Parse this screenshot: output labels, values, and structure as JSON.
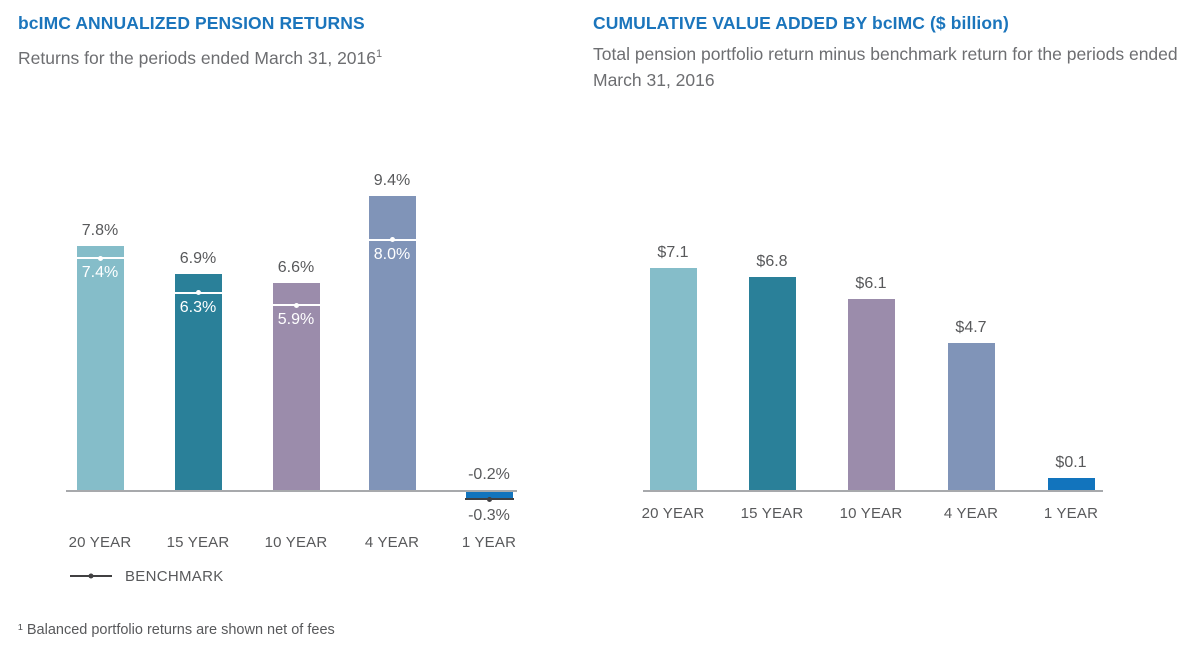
{
  "header_left": {
    "title": "bcIMC ANNUALIZED PENSION RETURNS",
    "subtitle": "Returns for the periods ended March 31, 2016",
    "footnote_ref": "1"
  },
  "header_right": {
    "title": "CUMULATIVE VALUE ADDED BY bcIMC ($ billion)",
    "subtitle": "Total pension portfolio return minus benchmark return for the periods ended March 31, 2016"
  },
  "legend": {
    "benchmark_label": "BENCHMARK"
  },
  "footnote": "¹ Balanced portfolio returns are shown net of fees",
  "colors": {
    "title_blue": "#1b75bc",
    "subtitle_gray": "#6d6e71",
    "label_gray": "#58595b",
    "axis_gray": "#a7a9ac",
    "benchmark_dark": "#414042",
    "benchmark_marker_on_bar": "#ffffff",
    "bar_palette": [
      "#85bdc9",
      "#2a8099",
      "#9b8cab",
      "#8094b8",
      "#1274bd"
    ]
  },
  "chart_data": [
    {
      "type": "bar",
      "title": "bcIMC ANNUALIZED PENSION RETURNS",
      "subtitle": "Returns for the periods ended March 31, 2016¹",
      "categories": [
        "20 YEAR",
        "15 YEAR",
        "10 YEAR",
        "4 YEAR",
        "1 YEAR"
      ],
      "series": [
        {
          "name": "Annualized pension return",
          "values": [
            7.8,
            6.9,
            6.6,
            9.4,
            -0.2
          ],
          "labels": [
            "7.8%",
            "6.9%",
            "6.6%",
            "9.4%",
            "-0.2%"
          ]
        },
        {
          "name": "BENCHMARK",
          "values": [
            7.4,
            6.3,
            5.9,
            8.0,
            -0.3
          ],
          "labels": [
            "7.4%",
            "6.3%",
            "5.9%",
            "8.0%",
            "-0.3%"
          ]
        }
      ],
      "bar_colors": [
        "#85bdc9",
        "#2a8099",
        "#9b8cab",
        "#8094b8",
        "#1274bd"
      ],
      "xlabel": "",
      "ylabel": "",
      "ylim": [
        -0.5,
        10
      ],
      "grid": false,
      "axis_labels_shown": false,
      "legend_position": "bottom-left"
    },
    {
      "type": "bar",
      "title": "CUMULATIVE VALUE ADDED BY bcIMC ($ billion)",
      "subtitle": "Total pension portfolio return minus benchmark return for the periods ended March 31, 2016",
      "categories": [
        "20 YEAR",
        "15 YEAR",
        "10 YEAR",
        "4 YEAR",
        "1 YEAR"
      ],
      "series": [
        {
          "name": "Cumulative value added ($ billion)",
          "values": [
            7.1,
            6.8,
            6.1,
            4.7,
            0.1
          ],
          "labels": [
            "$7.1",
            "$6.8",
            "$6.1",
            "$4.7",
            "$0.1"
          ]
        }
      ],
      "bar_colors": [
        "#85bdc9",
        "#2a8099",
        "#9b8cab",
        "#8094b8",
        "#1274bd"
      ],
      "xlabel": "",
      "ylabel": "",
      "ylim": [
        0,
        7.5
      ],
      "grid": false,
      "axis_labels_shown": false,
      "legend_position": "none"
    }
  ]
}
